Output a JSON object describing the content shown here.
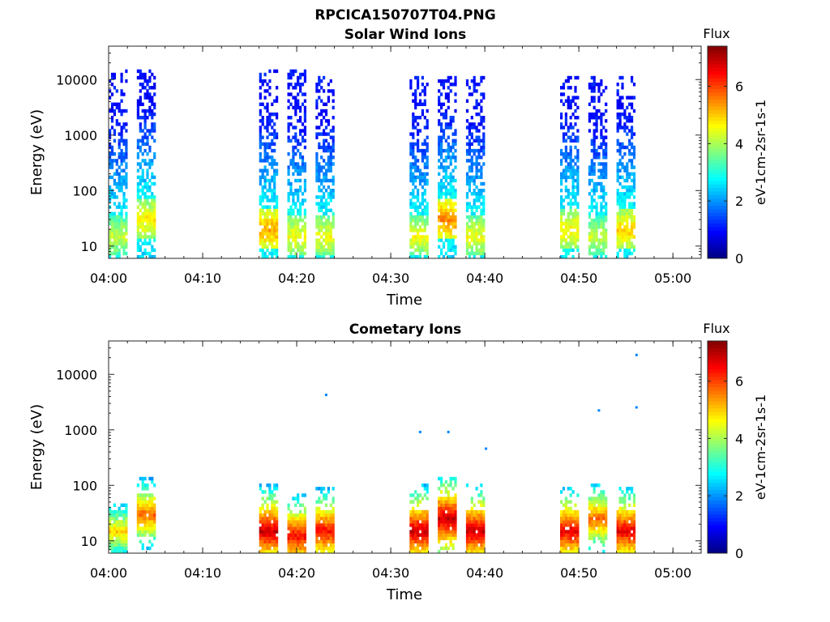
{
  "figure": {
    "title": "RPCICA150707T04.PNG"
  },
  "colormap": {
    "name": "jet",
    "stops": [
      "#00008f",
      "#0000ff",
      "#00ffff",
      "#ffff00",
      "#ff0000",
      "#800000"
    ]
  },
  "chart_data": [
    {
      "type": "heatmap",
      "title": "Solar Wind Ions",
      "xlabel": "Time",
      "ylabel": "Energy (eV)",
      "x_range": [
        "04:00",
        "05:03"
      ],
      "x_ticks": [
        "04:00",
        "04:10",
        "04:20",
        "04:30",
        "04:40",
        "04:50",
        "05:00"
      ],
      "y_scale": "log",
      "y_range": [
        6,
        40000
      ],
      "y_ticks": [
        "10",
        "100",
        "1000",
        "10000"
      ],
      "colorbar": {
        "title": "Flux",
        "label": "eV-1cm-2sr-1s-1",
        "range": [
          0,
          7.4
        ],
        "ticks": [
          "0",
          "2",
          "4",
          "6"
        ]
      },
      "bursts": [
        {
          "start": "04:00",
          "end": "04:02",
          "e_min": 6,
          "e_max": 15000,
          "peak_energy": 15,
          "peak_flux": 4.3
        },
        {
          "start": "04:03",
          "end": "04:05",
          "e_min": 6,
          "e_max": 15000,
          "peak_energy": 30,
          "peak_flux": 4.8
        },
        {
          "start": "04:16",
          "end": "04:18",
          "e_min": 6,
          "e_max": 15000,
          "peak_energy": 20,
          "peak_flux": 5.3
        },
        {
          "start": "04:19",
          "end": "04:21",
          "e_min": 6,
          "e_max": 15000,
          "peak_energy": 15,
          "peak_flux": 4.6
        },
        {
          "start": "04:22",
          "end": "04:24",
          "e_min": 6,
          "e_max": 12000,
          "peak_energy": 15,
          "peak_flux": 4.6
        },
        {
          "start": "04:32",
          "end": "04:34",
          "e_min": 6,
          "e_max": 12000,
          "peak_energy": 15,
          "peak_flux": 4.6
        },
        {
          "start": "04:35",
          "end": "04:37",
          "e_min": 6,
          "e_max": 12000,
          "peak_energy": 30,
          "peak_flux": 5.5
        },
        {
          "start": "04:38",
          "end": "04:40",
          "e_min": 6,
          "e_max": 12000,
          "peak_energy": 15,
          "peak_flux": 4.6
        },
        {
          "start": "04:48",
          "end": "04:50",
          "e_min": 6,
          "e_max": 12000,
          "peak_energy": 20,
          "peak_flux": 4.8
        },
        {
          "start": "04:51",
          "end": "04:53",
          "e_min": 6,
          "e_max": 12000,
          "peak_energy": 15,
          "peak_flux": 4.3
        },
        {
          "start": "04:54",
          "end": "04:56",
          "e_min": 6,
          "e_max": 12000,
          "peak_energy": 20,
          "peak_flux": 5.0
        }
      ]
    },
    {
      "type": "heatmap",
      "title": "Cometary Ions",
      "xlabel": "Time",
      "ylabel": "Energy (eV)",
      "x_range": [
        "04:00",
        "05:03"
      ],
      "x_ticks": [
        "04:00",
        "04:10",
        "04:20",
        "04:30",
        "04:40",
        "04:50",
        "05:00"
      ],
      "y_scale": "log",
      "y_range": [
        6,
        40000
      ],
      "y_ticks": [
        "10",
        "100",
        "1000",
        "10000"
      ],
      "colorbar": {
        "title": "Flux",
        "label": "eV-1cm-2sr-1s-1",
        "range": [
          0,
          7.4
        ],
        "ticks": [
          "0",
          "2",
          "4",
          "6"
        ]
      },
      "bursts": [
        {
          "start": "04:00",
          "end": "04:02",
          "e_min": 6,
          "e_max": 150,
          "peak_energy": 15,
          "peak_flux": 5.0
        },
        {
          "start": "04:03",
          "end": "04:05",
          "e_min": 6,
          "e_max": 200,
          "peak_energy": 30,
          "peak_flux": 5.8
        },
        {
          "start": "04:16",
          "end": "04:18",
          "e_min": 6,
          "e_max": 170,
          "peak_energy": 15,
          "peak_flux": 6.9
        },
        {
          "start": "04:19",
          "end": "04:21",
          "e_min": 6,
          "e_max": 100,
          "peak_energy": 12,
          "peak_flux": 6.5
        },
        {
          "start": "04:22",
          "end": "04:24",
          "e_min": 6,
          "e_max": 150,
          "peak_energy": 15,
          "peak_flux": 6.5
        },
        {
          "start": "04:32",
          "end": "04:34",
          "e_min": 6,
          "e_max": 400,
          "peak_energy": 15,
          "peak_flux": 6.9
        },
        {
          "start": "04:35",
          "end": "04:37",
          "e_min": 6,
          "e_max": 150,
          "peak_energy": 25,
          "peak_flux": 6.9
        },
        {
          "start": "04:38",
          "end": "04:40",
          "e_min": 6,
          "e_max": 150,
          "peak_energy": 15,
          "peak_flux": 6.9
        },
        {
          "start": "04:48",
          "end": "04:50",
          "e_min": 6,
          "e_max": 150,
          "peak_energy": 15,
          "peak_flux": 6.7
        },
        {
          "start": "04:51",
          "end": "04:53",
          "e_min": 6,
          "e_max": 400,
          "peak_energy": 25,
          "peak_flux": 5.8
        },
        {
          "start": "04:54",
          "end": "04:56",
          "e_min": 6,
          "e_max": 200,
          "peak_energy": 15,
          "peak_flux": 6.7
        }
      ],
      "isolated_points": [
        {
          "time": "04:23",
          "energy": 4200
        },
        {
          "time": "04:33",
          "energy": 900
        },
        {
          "time": "04:36",
          "energy": 900
        },
        {
          "time": "04:40",
          "energy": 450
        },
        {
          "time": "04:52",
          "energy": 2200
        },
        {
          "time": "04:56",
          "energy": 22000
        },
        {
          "time": "04:56",
          "energy": 2500
        }
      ]
    }
  ]
}
